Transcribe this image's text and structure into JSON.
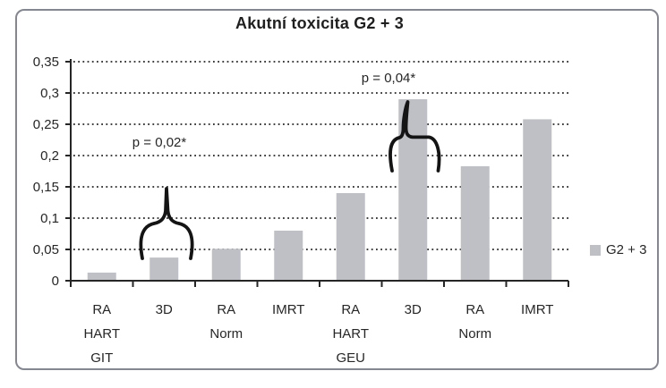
{
  "window": {
    "background": "#ffffff",
    "frame_border_color": "#84878f"
  },
  "chart_data": {
    "type": "bar",
    "title": "Akutní toxicita G2 + 3",
    "series_name": "G2 + 3",
    "categories": [
      [
        "RA",
        "HART",
        "GIT"
      ],
      [
        "3D"
      ],
      [
        "RA",
        "Norm"
      ],
      [
        "IMRT"
      ],
      [
        "RA",
        "HART",
        "GEU"
      ],
      [
        "3D"
      ],
      [
        "RA",
        "Norm"
      ],
      [
        "IMRT"
      ]
    ],
    "values": [
      0.013,
      0.037,
      0.051,
      0.08,
      0.14,
      0.29,
      0.183,
      0.258
    ],
    "y_ticks": [
      {
        "label": "0",
        "value": 0
      },
      {
        "label": "0,05",
        "value": 0.05
      },
      {
        "label": "0,1",
        "value": 0.1
      },
      {
        "label": "0,15",
        "value": 0.15
      },
      {
        "label": "0,2",
        "value": 0.2
      },
      {
        "label": "0,25",
        "value": 0.25
      },
      {
        "label": "0,3",
        "value": 0.3
      },
      {
        "label": "0,35",
        "value": 0.35
      }
    ],
    "ylim": [
      0,
      0.35
    ],
    "xlabel": "",
    "ylabel": "",
    "grid": "dotted-horizontal",
    "legend_position": "right",
    "bar_color": "#bfc0c5",
    "axis_color": "#262626",
    "text_color": "#262626",
    "annotations": [
      {
        "text": "p = 0,02*"
      },
      {
        "text": "p = 0,04*"
      }
    ]
  }
}
